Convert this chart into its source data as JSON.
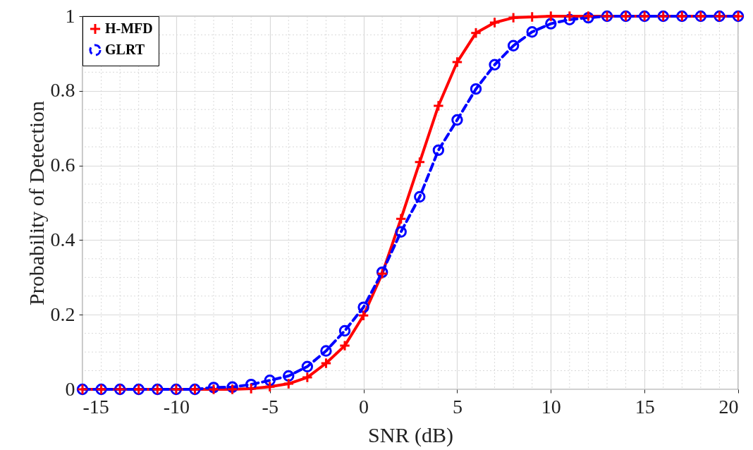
{
  "chart_data": {
    "type": "line",
    "xlabel": "SNR (dB)",
    "ylabel": "Probability of Detection",
    "x": [
      -15,
      -14,
      -13,
      -12,
      -11,
      -10,
      -9,
      -8,
      -7,
      -6,
      -5,
      -4,
      -3,
      -2,
      -1,
      0,
      1,
      2,
      3,
      4,
      5,
      6,
      7,
      8,
      9,
      10,
      11,
      12,
      13,
      14,
      15,
      16,
      17,
      18,
      19,
      20
    ],
    "series": [
      {
        "name": "H-MFD",
        "color": "#ff0000",
        "marker": "cross",
        "line_style": "solid",
        "values": [
          0,
          0,
          0,
          0,
          0,
          0,
          0,
          0,
          0,
          0.002,
          0.007,
          0.015,
          0.032,
          0.07,
          0.117,
          0.198,
          0.31,
          0.457,
          0.609,
          0.76,
          0.877,
          0.955,
          0.983,
          0.996,
          0.998,
          1,
          1,
          1,
          1,
          1,
          1,
          1,
          1,
          1,
          1,
          1
        ]
      },
      {
        "name": "GLRT",
        "color": "#0000ff",
        "marker": "circle",
        "line_style": "dashed",
        "values": [
          0,
          0,
          0,
          0,
          0,
          0,
          0,
          0.005,
          0.006,
          0.013,
          0.024,
          0.036,
          0.061,
          0.103,
          0.157,
          0.22,
          0.314,
          0.422,
          0.516,
          0.641,
          0.722,
          0.805,
          0.87,
          0.921,
          0.958,
          0.98,
          0.991,
          0.996,
          1,
          1,
          1,
          1,
          1,
          1,
          1,
          1
        ]
      }
    ],
    "xlim": [
      -15,
      20
    ],
    "xticks": [
      -15,
      -10,
      -5,
      0,
      5,
      10,
      15,
      20
    ],
    "ylim": [
      0,
      1
    ],
    "yticks": [
      0,
      0.2,
      0.4,
      0.6,
      0.8,
      1
    ],
    "grid": true,
    "legend": "top left"
  }
}
